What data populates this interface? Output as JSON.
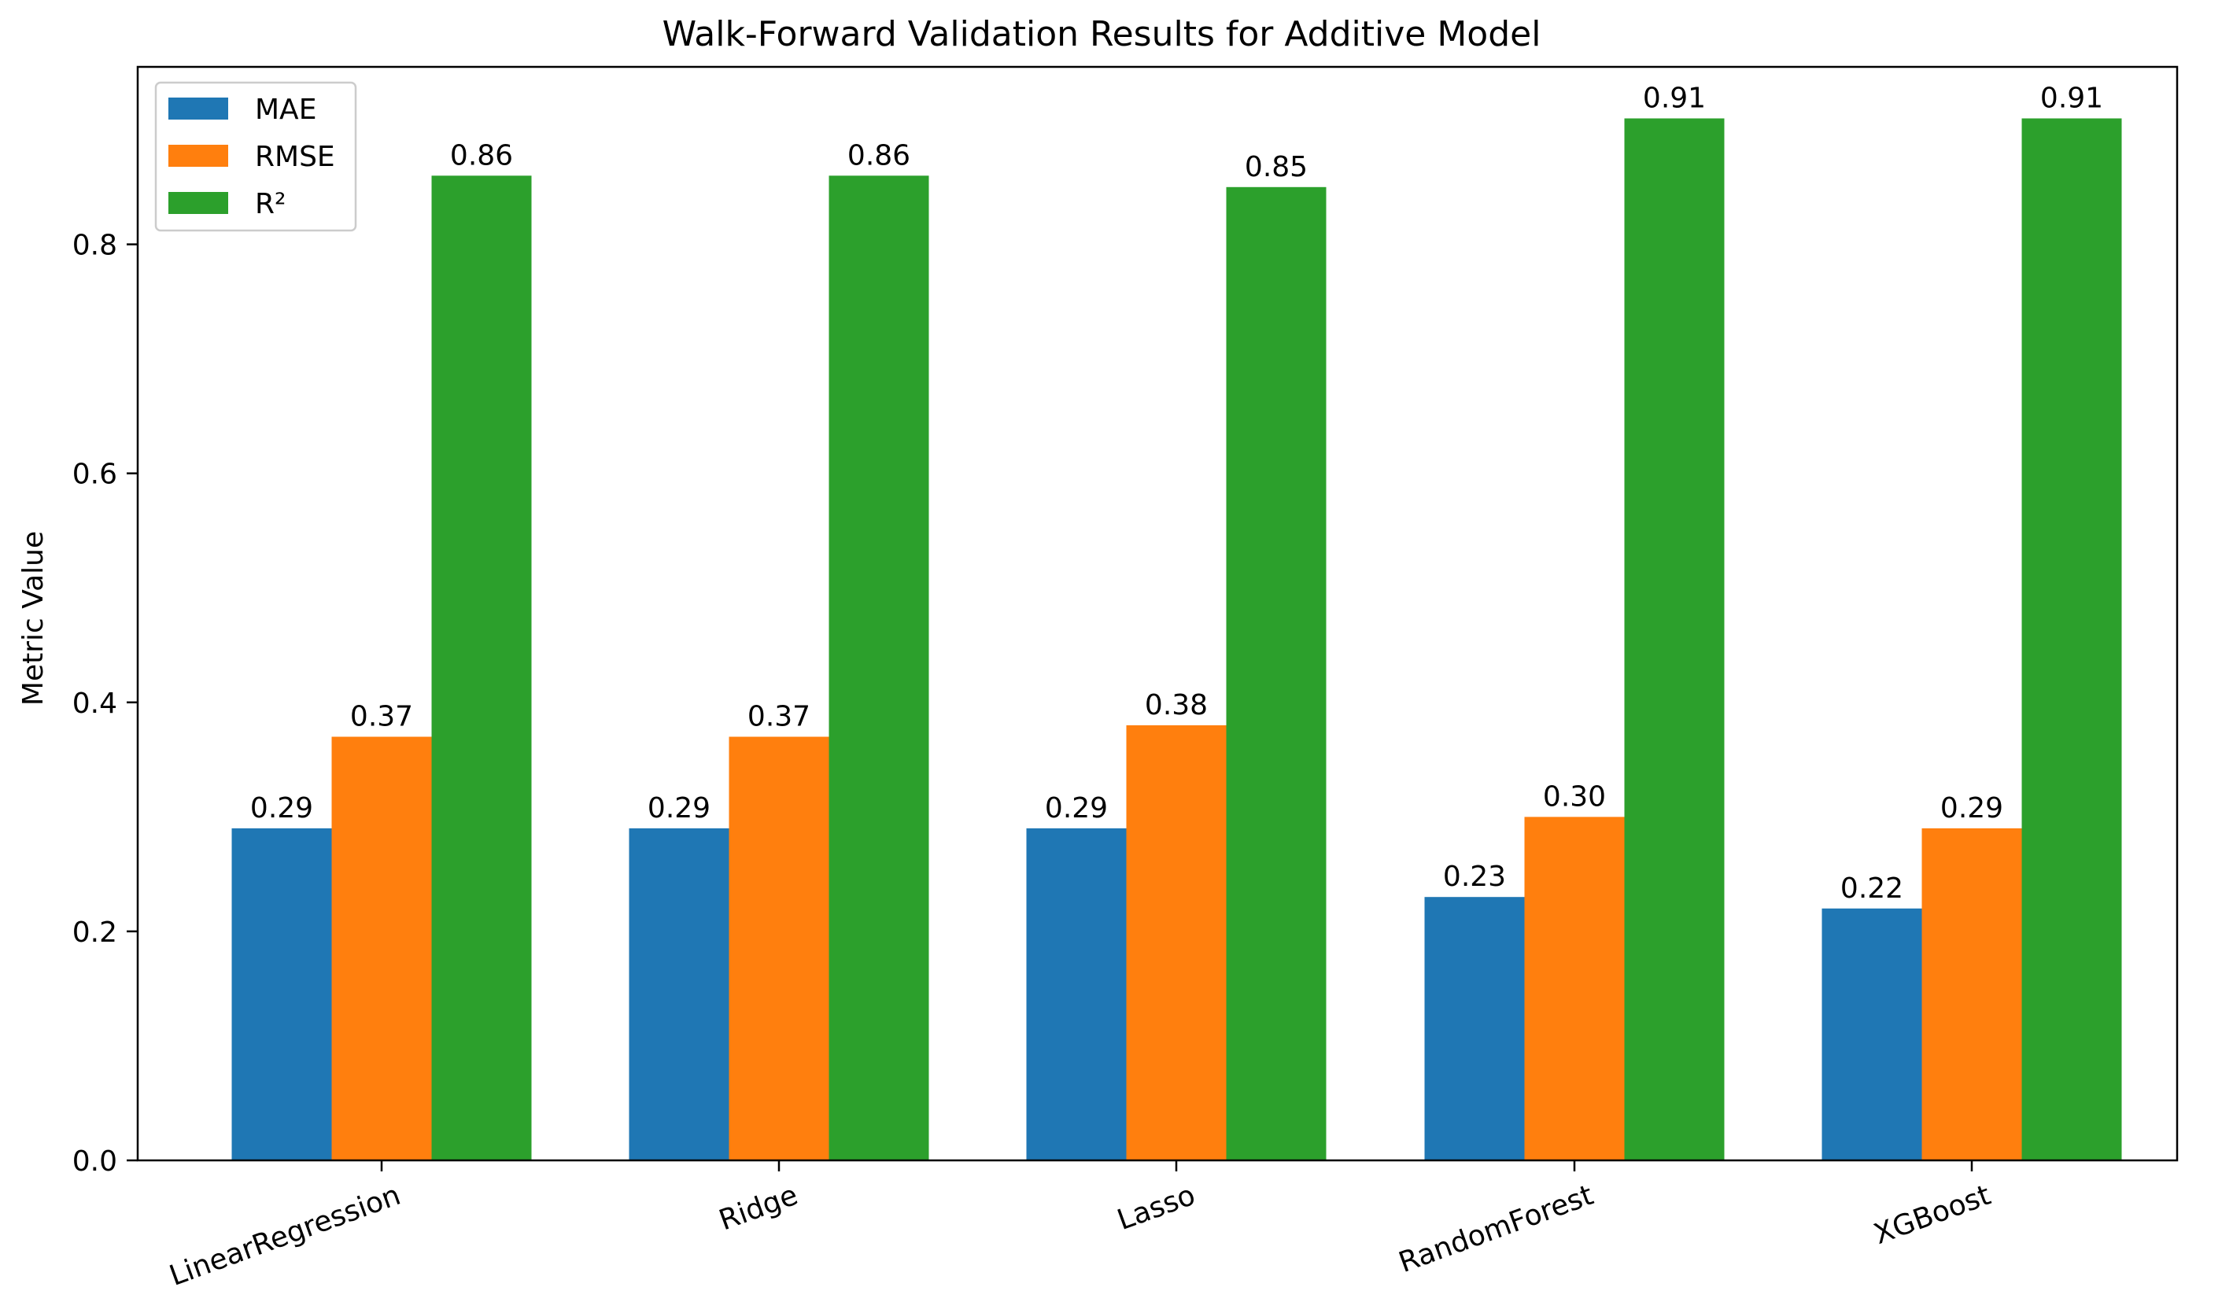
{
  "chart_data": {
    "type": "bar",
    "title": "Walk-Forward Validation Results for Additive Model",
    "xlabel": "",
    "ylabel": "Metric Value",
    "ylim": [
      0,
      0.955
    ],
    "yticks": [
      0.0,
      0.2,
      0.4,
      0.6,
      0.8
    ],
    "ytick_labels": [
      "0.0",
      "0.2",
      "0.4",
      "0.6",
      "0.8"
    ],
    "categories": [
      "LinearRegression",
      "Ridge",
      "Lasso",
      "RandomForest",
      "XGBoost"
    ],
    "legend_position": "upper-left",
    "grid": false,
    "series": [
      {
        "name": "MAE",
        "color": "#1f77b4",
        "values": [
          0.29,
          0.29,
          0.29,
          0.23,
          0.22
        ],
        "labels": [
          "0.29",
          "0.29",
          "0.29",
          "0.23",
          "0.22"
        ]
      },
      {
        "name": "RMSE",
        "color": "#ff7f0e",
        "values": [
          0.37,
          0.37,
          0.38,
          0.3,
          0.29
        ],
        "labels": [
          "0.37",
          "0.37",
          "0.38",
          "0.30",
          "0.29"
        ]
      },
      {
        "name": "R²",
        "color": "#2ca02c",
        "values": [
          0.86,
          0.86,
          0.85,
          0.91,
          0.91
        ],
        "labels": [
          "0.86",
          "0.86",
          "0.85",
          "0.91",
          "0.91"
        ]
      }
    ]
  }
}
